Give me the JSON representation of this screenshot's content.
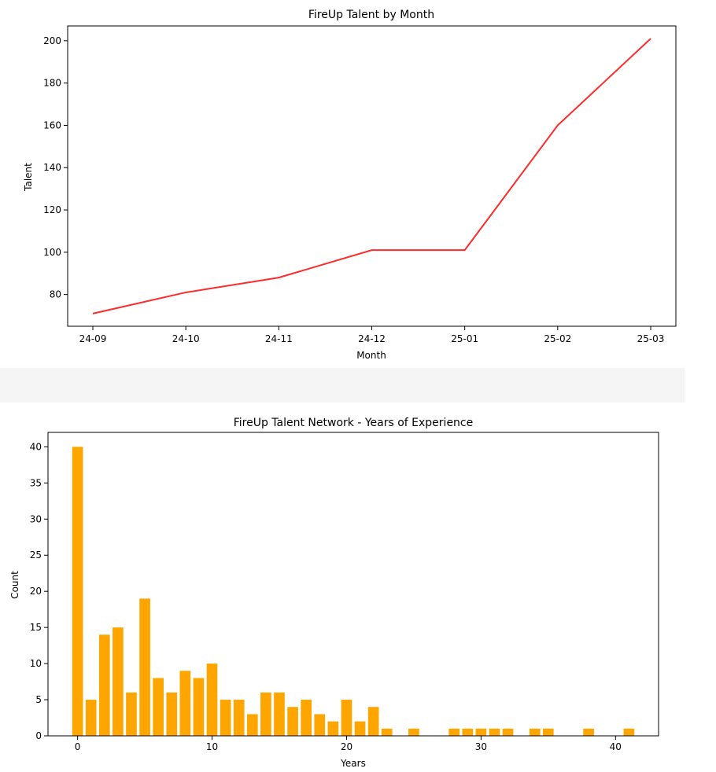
{
  "chart_data": [
    {
      "type": "line",
      "title": "FireUp Talent by Month",
      "xlabel": "Month",
      "ylabel": "Talent",
      "categories": [
        "24-09",
        "24-10",
        "24-11",
        "24-12",
        "25-01",
        "25-02",
        "25-03"
      ],
      "values": [
        71,
        81,
        88,
        101,
        101,
        160,
        201
      ],
      "ylim": [
        65,
        207
      ],
      "yticks": [
        80,
        100,
        120,
        140,
        160,
        180,
        200
      ],
      "line_color": "#ff2a2a",
      "grid": false
    },
    {
      "type": "bar",
      "title": "FireUp Talent Network - Years of Experience",
      "xlabel": "Years",
      "ylabel": "Count",
      "x": [
        0,
        1,
        2,
        3,
        4,
        5,
        6,
        7,
        8,
        9,
        10,
        11,
        12,
        13,
        14,
        15,
        16,
        17,
        18,
        19,
        20,
        21,
        22,
        23,
        25,
        28,
        29,
        30,
        31,
        32,
        34,
        35,
        38,
        41
      ],
      "values": [
        40,
        5,
        14,
        15,
        6,
        19,
        8,
        6,
        9,
        8,
        10,
        5,
        5,
        3,
        6,
        6,
        4,
        5,
        3,
        2,
        5,
        2,
        4,
        1,
        1,
        1,
        1,
        1,
        1,
        1,
        1,
        1,
        1,
        1
      ],
      "xlim": [
        -2.2,
        43.2
      ],
      "ylim": [
        0,
        42
      ],
      "xticks": [
        0,
        10,
        20,
        30,
        40
      ],
      "yticks": [
        0,
        5,
        10,
        15,
        20,
        25,
        30,
        35,
        40
      ],
      "bar_color": "#ffa500",
      "grid": false
    }
  ]
}
